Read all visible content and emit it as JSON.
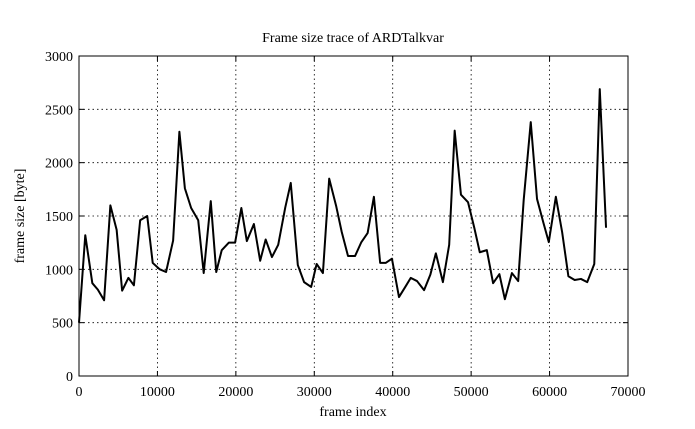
{
  "chart_data": {
    "type": "line",
    "title": "Frame size trace of ARDTalkvar",
    "xlabel": "frame index",
    "ylabel": "frame size [byte]",
    "x": [
      0,
      800,
      1700,
      2400,
      3200,
      4000,
      4800,
      5500,
      6300,
      7000,
      7800,
      8700,
      9400,
      10300,
      11100,
      12000,
      12800,
      13500,
      14300,
      15200,
      15900,
      16800,
      17500,
      18200,
      19100,
      19900,
      20700,
      21400,
      22300,
      23100,
      23800,
      24600,
      25400,
      26300,
      27000,
      27900,
      28700,
      29600,
      30300,
      31100,
      31900,
      32800,
      33500,
      34300,
      35200,
      36000,
      36800,
      37600,
      38400,
      39100,
      39900,
      40800,
      41600,
      42300,
      43100,
      44000,
      44800,
      45500,
      46400,
      47200,
      47900,
      48700,
      49600,
      50400,
      51100,
      52000,
      52800,
      53600,
      54300,
      55200,
      56000,
      56700,
      57600,
      58400,
      59200,
      59900,
      60800,
      61600,
      62400,
      63200,
      64000,
      64800,
      65700,
      66400,
      67200
    ],
    "series": [
      {
        "name": "frame size",
        "color": "#000000",
        "values": [
          500,
          1320,
          870,
          810,
          710,
          1600,
          1370,
          800,
          920,
          850,
          1460,
          1500,
          1060,
          1000,
          975,
          1270,
          2290,
          1760,
          1575,
          1460,
          965,
          1640,
          975,
          1180,
          1250,
          1250,
          1575,
          1265,
          1425,
          1080,
          1280,
          1115,
          1230,
          1580,
          1810,
          1040,
          880,
          835,
          1050,
          965,
          1850,
          1590,
          1350,
          1125,
          1125,
          1255,
          1340,
          1680,
          1060,
          1060,
          1100,
          740,
          835,
          920,
          890,
          805,
          950,
          1150,
          880,
          1230,
          2300,
          1700,
          1630,
          1390,
          1160,
          1180,
          870,
          955,
          720,
          965,
          890,
          1650,
          2380,
          1660,
          1440,
          1255,
          1680,
          1350,
          935,
          900,
          910,
          880,
          1050,
          2690,
          1390
        ]
      }
    ],
    "xlim": [
      0,
      70000
    ],
    "xticks": [
      0,
      10000,
      20000,
      30000,
      40000,
      50000,
      60000,
      70000
    ],
    "ylim": [
      0,
      3000
    ],
    "yticks": [
      0,
      500,
      1000,
      1500,
      2000,
      2500,
      3000
    ],
    "grid": true
  }
}
